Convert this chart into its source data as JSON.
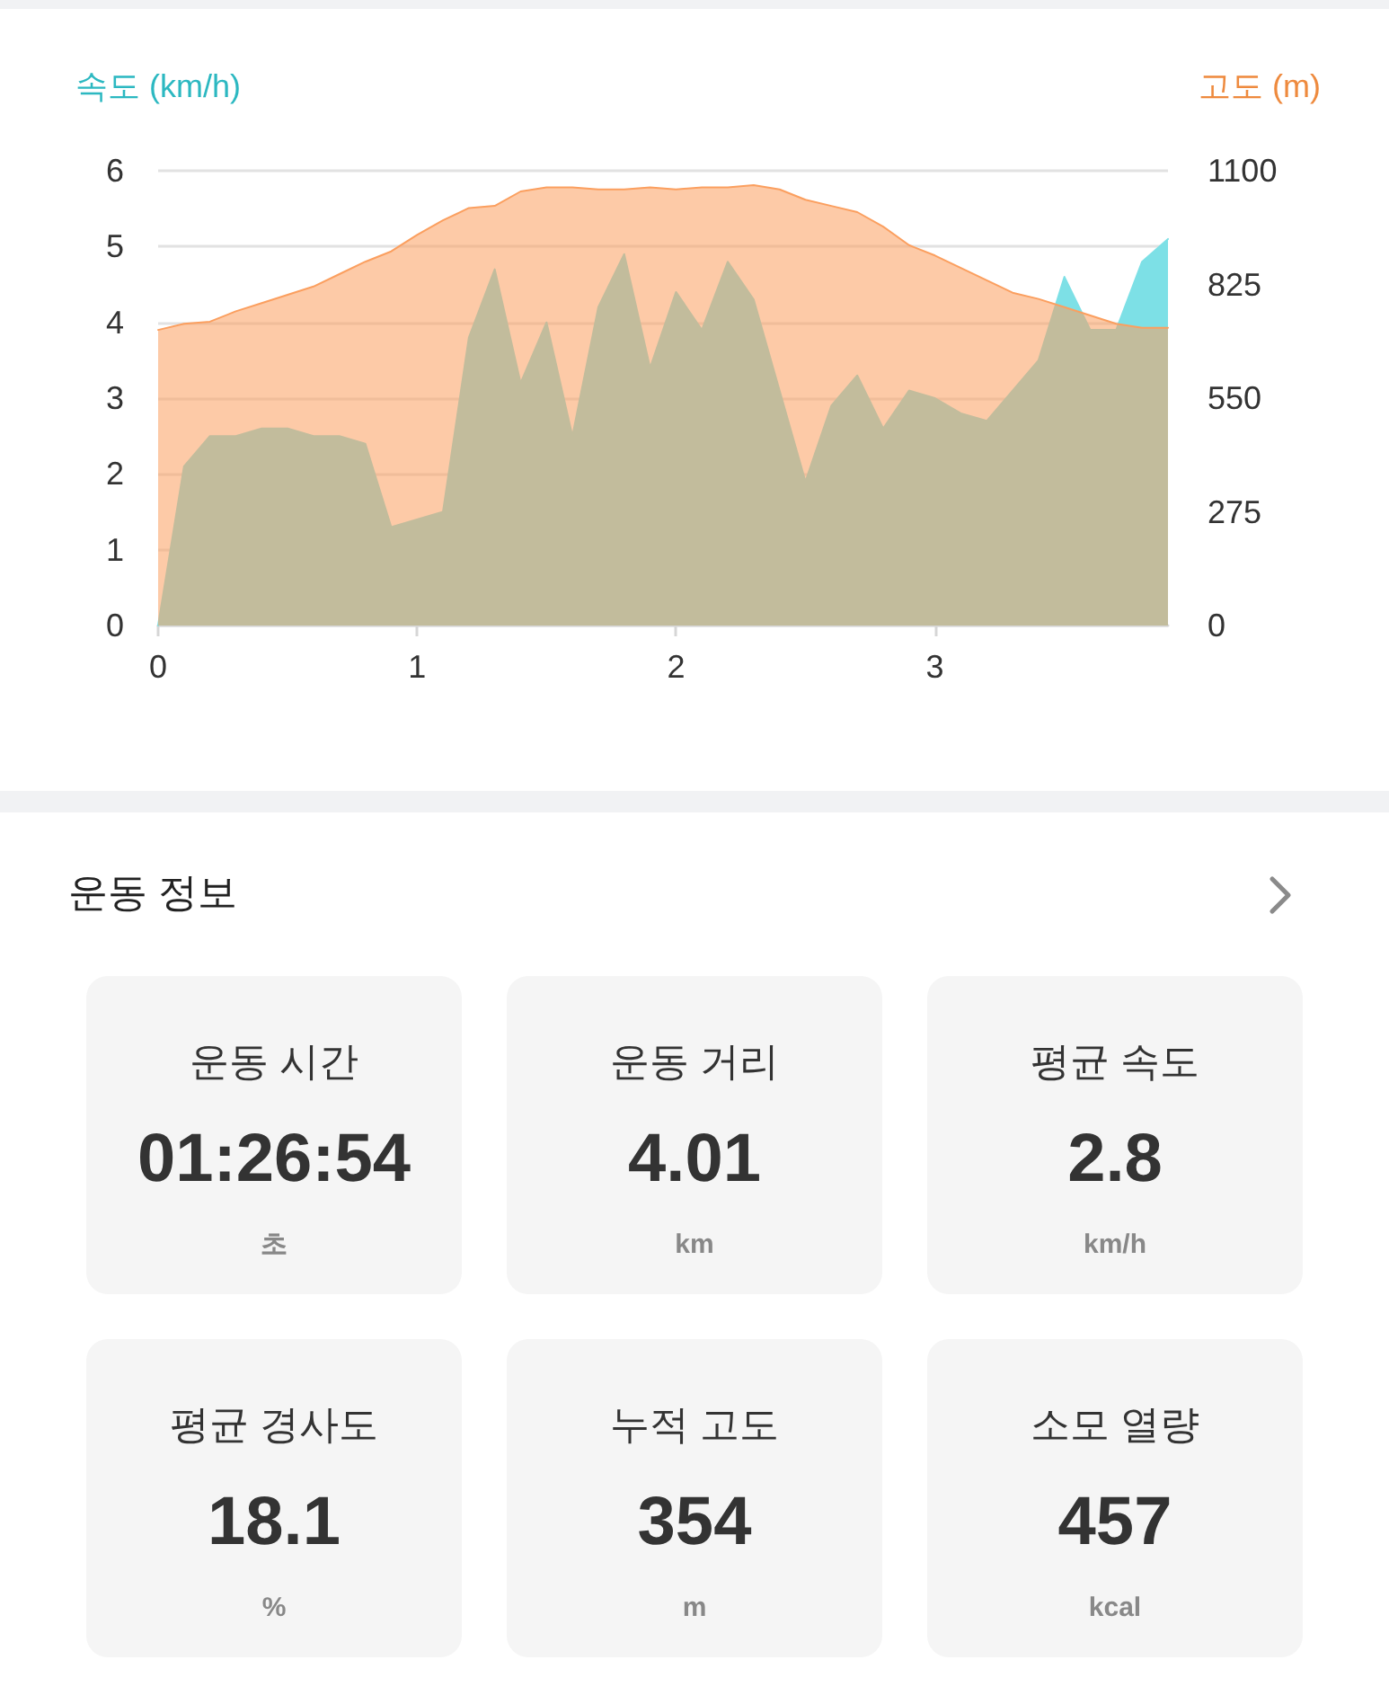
{
  "chart_data": [
    {
      "type": "area",
      "ylabel": "속도 (km/h)",
      "y2label": "고도 (m)",
      "x": [
        0,
        0.1,
        0.2,
        0.3,
        0.4,
        0.5,
        0.6,
        0.7,
        0.8,
        0.9,
        1,
        1.1,
        1.2,
        1.3,
        1.4,
        1.5,
        1.6,
        1.7,
        1.8,
        1.9,
        2,
        2.1,
        2.2,
        2.3,
        2.4,
        2.5,
        2.6,
        2.7,
        2.8,
        2.9,
        3,
        3.1,
        3.2,
        3.3,
        3.4,
        3.5,
        3.6,
        3.7,
        3.8,
        3.9
      ],
      "series": [
        {
          "color": "#7de0e6",
          "values": [
            0,
            2.1,
            2.5,
            2.5,
            2.6,
            2.6,
            2.5,
            2.5,
            2.4,
            1.3,
            1.4,
            1.5,
            3.8,
            4.7,
            3.2,
            4.0,
            2.5,
            4.2,
            4.9,
            3.4,
            4.4,
            3.9,
            4.8,
            4.3,
            3.1,
            1.9,
            2.9,
            3.3,
            2.6,
            3.1,
            3.0,
            2.8,
            2.7,
            3.1,
            3.5,
            4.6,
            3.9,
            3.9,
            4.8,
            5.1
          ]
        },
        {
          "color": "#fb9f5f",
          "axis": "y2",
          "values": [
            715,
            730,
            735,
            760,
            780,
            800,
            820,
            850,
            880,
            905,
            945,
            980,
            1010,
            1015,
            1050,
            1060,
            1060,
            1055,
            1055,
            1060,
            1055,
            1060,
            1060,
            1065,
            1055,
            1030,
            1015,
            1000,
            965,
            920,
            895,
            865,
            835,
            805,
            790,
            770,
            750,
            730,
            720,
            720
          ]
        }
      ],
      "xlim": [
        0,
        3.9
      ],
      "xticks": [
        0,
        1,
        2,
        3
      ],
      "ylim": [
        0,
        6
      ],
      "yticks": [
        0,
        1,
        2,
        3,
        4,
        5,
        6
      ],
      "y2lim": [
        0,
        1100
      ],
      "y2ticks": [
        0,
        275,
        550,
        825,
        1100
      ],
      "grid": "y",
      "marker": "none",
      "line_style": "solid"
    },
    {
      "type": "other",
      "title": "운동 정보",
      "annotations": [
        "운동 시간",
        "01:26:54",
        "초",
        "운동 거리",
        "4.01",
        "km",
        "평균 속도",
        "2.8",
        "km/h",
        "평균 경사도",
        "18.1",
        "%",
        "누적 고도",
        "354",
        "m",
        "소모 열량",
        "457",
        "kcal"
      ]
    }
  ]
}
